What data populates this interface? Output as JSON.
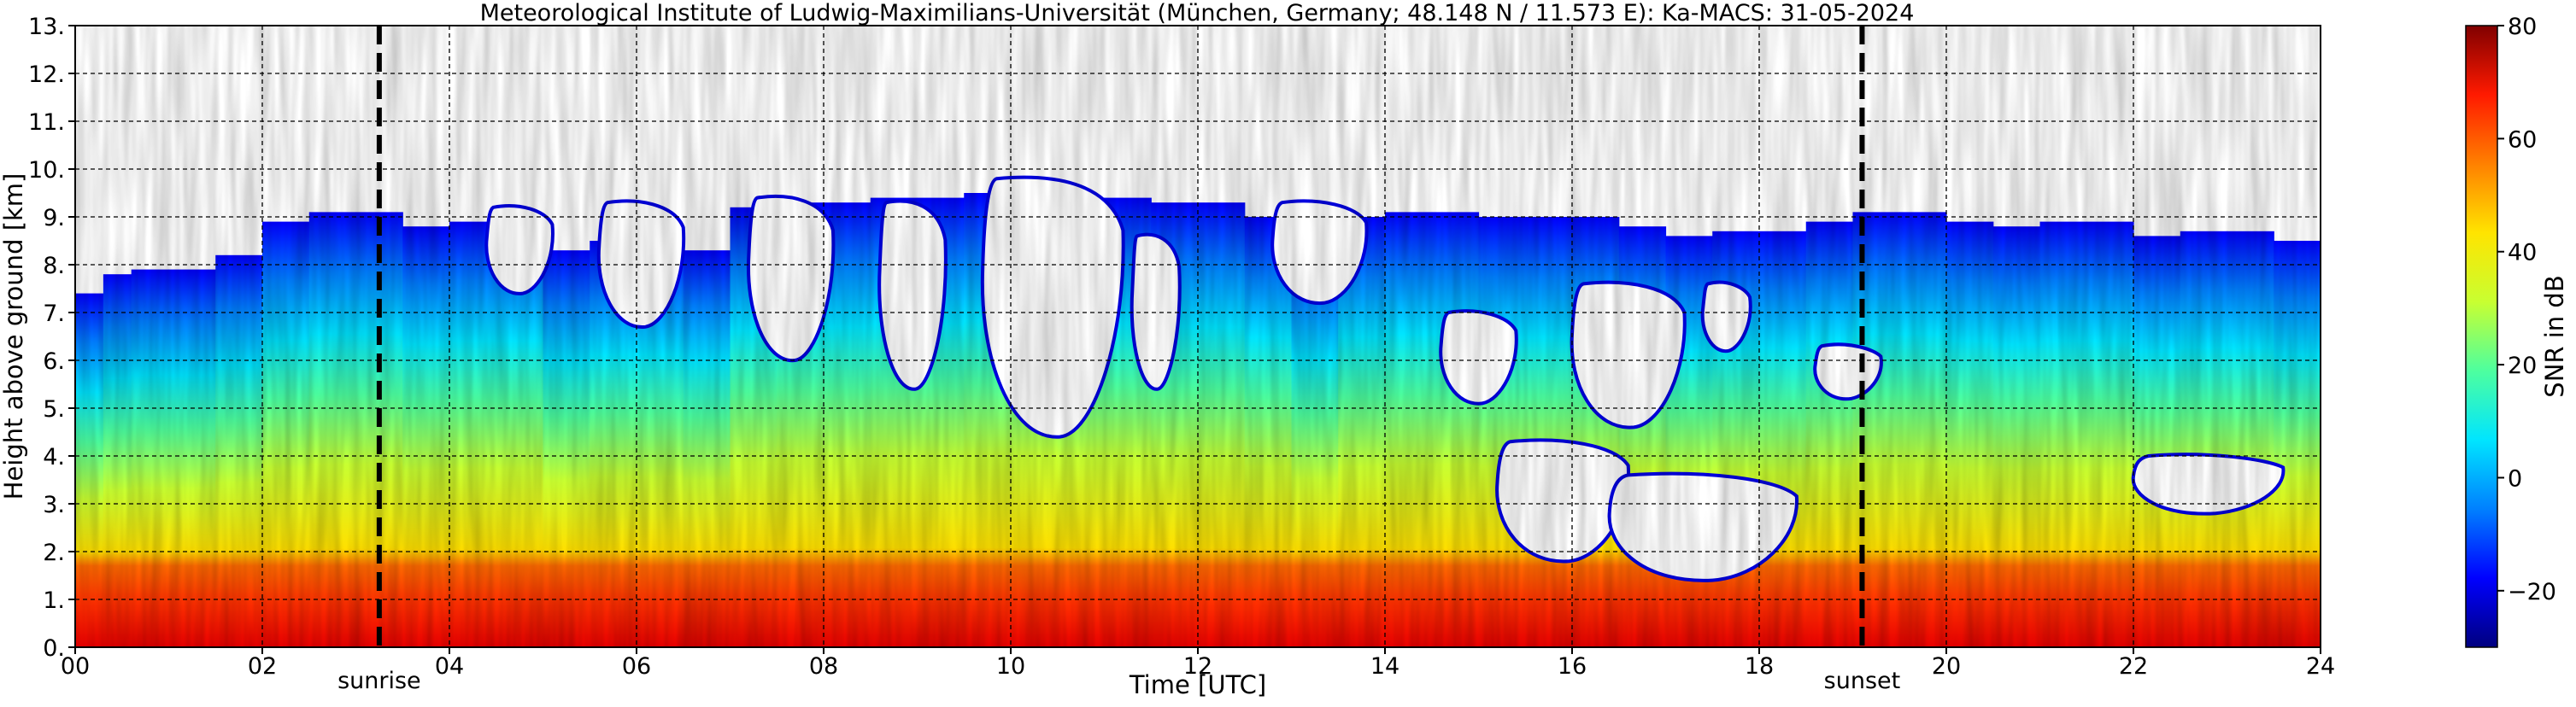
{
  "chart_data": {
    "type": "heatmap",
    "title": "Meteorological Institute of Ludwig-Maximilians-Universität (München, Germany; 48.148 N / 11.573 E):    Ka-MACS: 31-05-2024",
    "xlabel": "Time [UTC]",
    "ylabel": "Height above ground [km]",
    "xlim": [
      0,
      24
    ],
    "ylim": [
      0,
      13
    ],
    "x_ticks": [
      {
        "value": 0,
        "label": "00"
      },
      {
        "value": 2,
        "label": "02"
      },
      {
        "value": 4,
        "label": "04"
      },
      {
        "value": 6,
        "label": "06"
      },
      {
        "value": 8,
        "label": "08"
      },
      {
        "value": 10,
        "label": "10"
      },
      {
        "value": 12,
        "label": "12"
      },
      {
        "value": 14,
        "label": "14"
      },
      {
        "value": 16,
        "label": "16"
      },
      {
        "value": 18,
        "label": "18"
      },
      {
        "value": 20,
        "label": "20"
      },
      {
        "value": 22,
        "label": "22"
      },
      {
        "value": 24,
        "label": "24"
      }
    ],
    "y_ticks": [
      {
        "value": 0,
        "label": "0."
      },
      {
        "value": 1,
        "label": "1."
      },
      {
        "value": 2,
        "label": "2."
      },
      {
        "value": 3,
        "label": "3."
      },
      {
        "value": 4,
        "label": "4."
      },
      {
        "value": 5,
        "label": "5."
      },
      {
        "value": 6,
        "label": "6."
      },
      {
        "value": 7,
        "label": "7."
      },
      {
        "value": 8,
        "label": "8."
      },
      {
        "value": 9,
        "label": "9."
      },
      {
        "value": 10,
        "label": "10."
      },
      {
        "value": 11,
        "label": "11."
      },
      {
        "value": 12,
        "label": "12."
      },
      {
        "value": 13,
        "label": "13."
      }
    ],
    "grid": true,
    "colorbar": {
      "label": "SNR in dB",
      "range": [
        -30,
        80
      ],
      "ticks": [
        {
          "value": -20,
          "label": "−20"
        },
        {
          "value": 0,
          "label": "0"
        },
        {
          "value": 20,
          "label": "20"
        },
        {
          "value": 40,
          "label": "40"
        },
        {
          "value": 60,
          "label": "60"
        },
        {
          "value": 80,
          "label": "80"
        }
      ],
      "colors": [
        "#00007f",
        "#0000ff",
        "#0080ff",
        "#00e5ff",
        "#4dff9f",
        "#c8ff31",
        "#ffe400",
        "#ff8000",
        "#ff1a00",
        "#800000"
      ]
    },
    "annotations": [
      {
        "name": "sunrise",
        "label": "sunrise",
        "x": 3.25
      },
      {
        "name": "sunset",
        "label": "sunset",
        "x": 19.1
      }
    ],
    "profile": {
      "x": [
        0,
        0.3,
        0.6,
        1,
        1.5,
        2,
        2.5,
        3,
        3.5,
        4,
        4.5,
        5,
        5.5,
        6,
        6.5,
        7,
        7.5,
        8,
        8.5,
        9,
        9.5,
        10,
        10.5,
        11,
        11.5,
        12,
        12.5,
        13,
        13.5,
        14,
        14.5,
        15,
        15.5,
        16,
        16.5,
        17,
        17.5,
        18,
        18.5,
        19,
        19.5,
        20,
        20.5,
        21,
        21.5,
        22,
        22.5,
        23,
        23.5,
        24
      ],
      "echo_top_km": [
        6.2,
        7.4,
        7.8,
        7.9,
        7.6,
        8.2,
        8.9,
        9.1,
        8.8,
        8.6,
        8.9,
        8.3,
        8.2,
        8.5,
        8.0,
        8.3,
        9.2,
        9.3,
        9.1,
        9.4,
        9.3,
        9.5,
        8.0,
        9.4,
        9.2,
        9.3,
        9.0,
        8.4,
        7.8,
        9.0,
        9.1,
        9.0,
        8.9,
        9.0,
        8.8,
        8.5,
        8.6,
        8.7,
        8.6,
        8.9,
        9.1,
        8.9,
        8.7,
        8.8,
        8.9,
        8.4,
        8.6,
        8.7,
        8.5,
        8.3
      ],
      "gaps": [
        {
          "x0": 4.4,
          "x1": 5.1,
          "y0": 7.4,
          "y1": 9.2
        },
        {
          "x0": 5.6,
          "x1": 6.5,
          "y0": 6.7,
          "y1": 9.3
        },
        {
          "x0": 7.2,
          "x1": 8.1,
          "y0": 6.0,
          "y1": 9.4
        },
        {
          "x0": 8.6,
          "x1": 9.3,
          "y0": 5.4,
          "y1": 9.3
        },
        {
          "x0": 9.7,
          "x1": 11.2,
          "y0": 4.4,
          "y1": 9.8
        },
        {
          "x0": 11.3,
          "x1": 11.8,
          "y0": 5.4,
          "y1": 8.6
        },
        {
          "x0": 12.8,
          "x1": 13.8,
          "y0": 7.2,
          "y1": 9.3
        },
        {
          "x0": 14.6,
          "x1": 15.4,
          "y0": 5.1,
          "y1": 7.0
        },
        {
          "x0": 15.2,
          "x1": 16.6,
          "y0": 1.8,
          "y1": 4.3
        },
        {
          "x0": 16.4,
          "x1": 18.4,
          "y0": 1.4,
          "y1": 3.6
        },
        {
          "x0": 16.0,
          "x1": 17.2,
          "y0": 4.6,
          "y1": 7.6
        },
        {
          "x0": 17.4,
          "x1": 17.9,
          "y0": 6.2,
          "y1": 7.6
        },
        {
          "x0": 18.6,
          "x1": 19.3,
          "y0": 5.2,
          "y1": 6.3
        },
        {
          "x0": 22.0,
          "x1": 23.6,
          "y0": 2.8,
          "y1": 4.0
        }
      ],
      "near_surface_red_km": 1.7
    }
  }
}
